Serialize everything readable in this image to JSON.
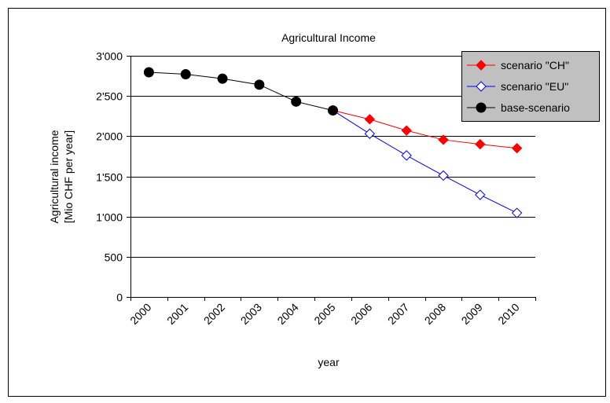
{
  "chart_data": {
    "type": "line",
    "title": "Agricultural Income",
    "xlabel": "year",
    "ylabel": [
      "Agricultural income",
      "[Mio CHF per year]"
    ],
    "categories": [
      "2000",
      "2001",
      "2002",
      "2003",
      "2004",
      "2005",
      "2006",
      "2007",
      "2008",
      "2009",
      "2010"
    ],
    "ylim": [
      0,
      3000
    ],
    "yticks": [
      0,
      500,
      1000,
      1500,
      2000,
      2500,
      3000
    ],
    "ytick_labels": [
      "0",
      "500",
      "1'000",
      "1'500",
      "2'000",
      "2'500",
      "3'000"
    ],
    "grid": "horizontal",
    "legend_position": "top-right",
    "series": [
      {
        "name": "scenario \"CH\"",
        "color": "#ff0000",
        "marker": "filled-diamond",
        "values": [
          null,
          null,
          null,
          null,
          null,
          2320,
          2210,
          2070,
          1955,
          1900,
          1850
        ]
      },
      {
        "name": "scenario \"EU\"",
        "color": "#0000ff",
        "marker": "open-diamond",
        "values": [
          null,
          null,
          null,
          null,
          null,
          2320,
          2030,
          1760,
          1510,
          1270,
          1045
        ]
      },
      {
        "name": "base-scenario",
        "color": "#000000",
        "marker": "filled-circle",
        "values": [
          2795,
          2770,
          2715,
          2640,
          2430,
          2320,
          null,
          null,
          null,
          null,
          null
        ]
      }
    ]
  }
}
